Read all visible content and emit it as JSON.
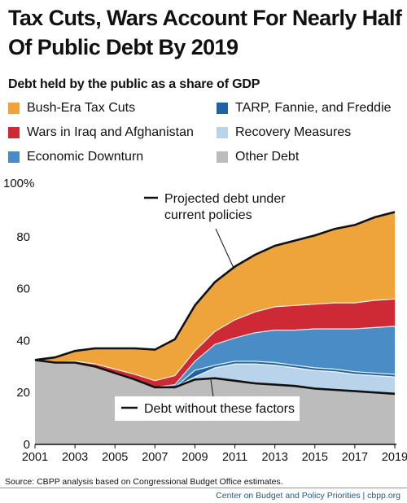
{
  "title": "Tax Cuts, Wars Account For Nearly Half Of Public Debt By 2019",
  "subtitle": "Debt held by the public as a share of GDP",
  "source": "Source:  CBPP analysis based on Congressional Budget Office estimates.",
  "footer": "Center on Budget and Policy Priorities | cbpp.org",
  "colors": {
    "bush_tax_cuts": "#efa33b",
    "wars": "#cd2a36",
    "economic_downturn": "#4a8cc6",
    "tarp": "#1f63a5",
    "recovery": "#b9d4ea",
    "other_debt": "#bcbcbc"
  },
  "chart_data": {
    "type": "area",
    "stacked": true,
    "title": "Tax Cuts, Wars Account For Nearly Half Of Public Debt By 2019",
    "subtitle": "Debt held by the public as a share of GDP",
    "x": [
      2001,
      2002,
      2003,
      2004,
      2005,
      2006,
      2007,
      2008,
      2009,
      2010,
      2011,
      2012,
      2013,
      2014,
      2015,
      2016,
      2017,
      2018,
      2019
    ],
    "x_tick_labels": [
      "2001",
      "2003",
      "2005",
      "2007",
      "2009",
      "2011",
      "2013",
      "2015",
      "2017",
      "2019"
    ],
    "y_tick_labels": [
      "0",
      "20",
      "40",
      "60",
      "80",
      "100%"
    ],
    "ylim": [
      0,
      100
    ],
    "series": [
      {
        "name": "Other Debt",
        "key": "other_debt",
        "values": [
          32.5,
          31.5,
          31.5,
          30.0,
          27.5,
          25.0,
          22.0,
          22.0,
          25.0,
          25.5,
          24.5,
          23.5,
          23.0,
          22.5,
          21.5,
          21.0,
          20.5,
          20.0,
          19.5
        ]
      },
      {
        "name": "Recovery Measures",
        "key": "recovery",
        "values": [
          0,
          0,
          0,
          0,
          0,
          0,
          0,
          0,
          1.0,
          4.0,
          6.5,
          7.5,
          7.5,
          7.0,
          7.0,
          7.0,
          6.5,
          6.5,
          6.5
        ]
      },
      {
        "name": "TARP, Fannie, and Freddie",
        "key": "tarp",
        "values": [
          0,
          0,
          0,
          0,
          0,
          0,
          0,
          0,
          2.5,
          1.0,
          1.0,
          1.0,
          1.0,
          1.0,
          1.0,
          1.0,
          1.0,
          1.0,
          1.0
        ]
      },
      {
        "name": "Economic Downturn",
        "key": "economic_downturn",
        "values": [
          0,
          0,
          0,
          0,
          0,
          0,
          0,
          1.0,
          3.5,
          8.0,
          9.0,
          11.0,
          12.5,
          13.5,
          15.0,
          15.5,
          16.5,
          17.5,
          18.5
        ]
      },
      {
        "name": "Wars in Iraq and Afghanistan",
        "key": "wars",
        "values": [
          0,
          0,
          0.5,
          1.0,
          1.5,
          2.0,
          2.5,
          3.5,
          4.0,
          5.0,
          7.0,
          8.0,
          9.0,
          9.5,
          9.5,
          10.0,
          10.0,
          10.5,
          10.5
        ]
      },
      {
        "name": "Bush-Era Tax Cuts",
        "key": "bush_tax_cuts",
        "values": [
          0,
          2.0,
          4.0,
          6.0,
          8.0,
          10.0,
          12.0,
          14.0,
          17.5,
          19.0,
          20.5,
          22.0,
          23.5,
          25.0,
          26.5,
          28.5,
          30.0,
          32.0,
          33.5
        ]
      }
    ],
    "annotations": [
      {
        "label": "Projected debt under current policies",
        "points_to": "top of stack"
      },
      {
        "label": "Debt without these factors",
        "points_to": "top of Other Debt"
      }
    ],
    "legend": {
      "placement": "top",
      "items": [
        {
          "label": "Bush-Era Tax Cuts",
          "key": "bush_tax_cuts"
        },
        {
          "label": "TARP, Fannie, and Freddie",
          "key": "tarp"
        },
        {
          "label": "Wars in Iraq and Afghanistan",
          "key": "wars"
        },
        {
          "label": "Recovery Measures",
          "key": "recovery"
        },
        {
          "label": "Economic Downturn",
          "key": "economic_downturn"
        },
        {
          "label": "Other Debt",
          "key": "other_debt"
        }
      ]
    }
  }
}
